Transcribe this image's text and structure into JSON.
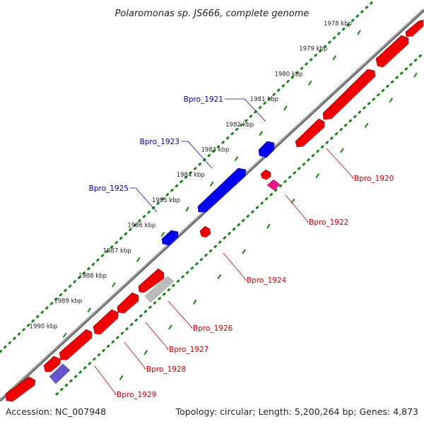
{
  "title": "Polaromonas sp. JS666, complete genome",
  "footer": {
    "accession": "Accession: NC_007948",
    "summary": "Topology: circular; Length: 5,200,264 bp; Genes: 4,873"
  },
  "colors": {
    "forward": "#0000ee",
    "reverse": "#ee0000",
    "forward_label": "#0000aa",
    "reverse_label": "#cc0000",
    "backbone": "#777777",
    "tick_dots": "#118811",
    "major_ticks": "#118811",
    "highlight_pink": "#ee1188",
    "highlight_purple": "#6655cc",
    "highlight_gray": "#bbbbbb"
  },
  "kbp_ticks": [
    "1978 kbp",
    "1979 kbp",
    "1980 kbp",
    "1981 kbp",
    "1982 kbp",
    "1983 kbp",
    "1984 kbp",
    "1985 kbp",
    "1986 kbp",
    "1987 kbp",
    "1988 kbp",
    "1989 kbp",
    "1990 kbp"
  ],
  "forward_labels": [
    "Bpro_1921",
    "Bpro_1923",
    "Bpro_1925"
  ],
  "reverse_labels": [
    "Bpro_1920",
    "Bpro_1922",
    "Bpro_1924",
    "Bpro_1926",
    "Bpro_1927",
    "Bpro_1928",
    "Bpro_1929"
  ]
}
